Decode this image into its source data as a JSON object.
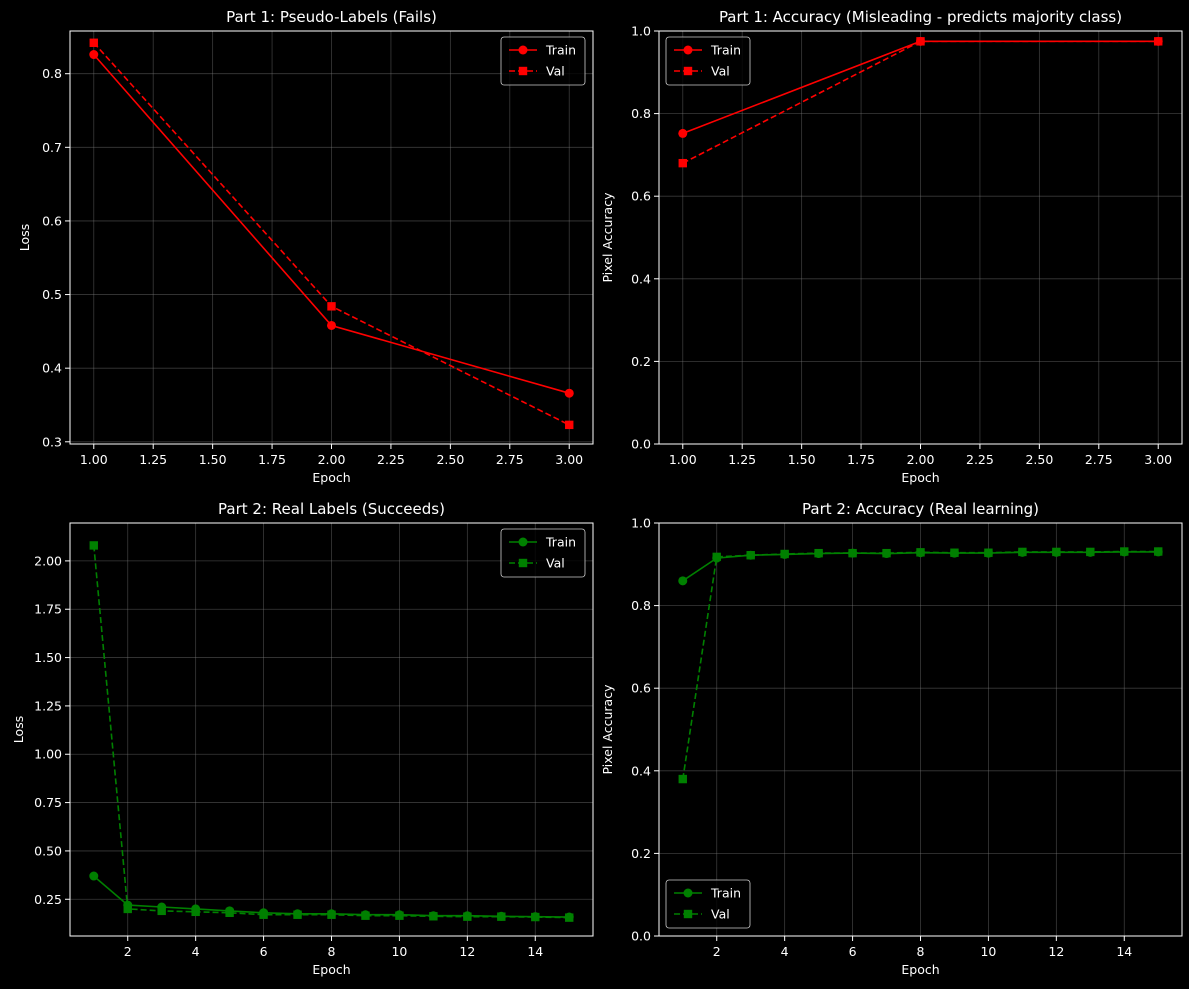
{
  "colors": {
    "background": "#000000",
    "text": "#ffffff",
    "grid": "#808080",
    "part1": "#ff0000",
    "part2": "#008000"
  },
  "chart_data": [
    {
      "type": "line",
      "title": "Part 1: Pseudo-Labels (Fails)",
      "xlabel": "Epoch",
      "ylabel": "Loss",
      "xlim": [
        0.9,
        3.1
      ],
      "ylim": [
        0.297,
        0.858
      ],
      "xticks": [
        1.0,
        1.25,
        1.5,
        1.75,
        2.0,
        2.25,
        2.5,
        2.75,
        3.0
      ],
      "xtick_labels": [
        "1.00",
        "1.25",
        "1.50",
        "1.75",
        "2.00",
        "2.25",
        "2.50",
        "2.75",
        "3.00"
      ],
      "yticks": [
        0.3,
        0.4,
        0.5,
        0.6,
        0.7,
        0.8
      ],
      "ytick_labels": [
        "0.3",
        "0.4",
        "0.5",
        "0.6",
        "0.7",
        "0.8"
      ],
      "grid": true,
      "legend": "upper-right",
      "color": "#ff0000",
      "x": [
        1,
        2,
        3
      ],
      "series": [
        {
          "name": "Train",
          "style": "solid",
          "marker": "circle",
          "values": [
            0.826,
            0.458,
            0.366
          ]
        },
        {
          "name": "Val",
          "style": "dashed",
          "marker": "square",
          "values": [
            0.842,
            0.484,
            0.323
          ]
        }
      ]
    },
    {
      "type": "line",
      "title": "Part 1: Accuracy (Misleading - predicts majority class)",
      "xlabel": "Epoch",
      "ylabel": "Pixel Accuracy",
      "xlim": [
        0.9,
        3.1
      ],
      "ylim": [
        0,
        1
      ],
      "xticks": [
        1.0,
        1.25,
        1.5,
        1.75,
        2.0,
        2.25,
        2.5,
        2.75,
        3.0
      ],
      "xtick_labels": [
        "1.00",
        "1.25",
        "1.50",
        "1.75",
        "2.00",
        "2.25",
        "2.50",
        "2.75",
        "3.00"
      ],
      "yticks": [
        0,
        0.2,
        0.4,
        0.6,
        0.8,
        1.0
      ],
      "ytick_labels": [
        "0.0",
        "0.2",
        "0.4",
        "0.6",
        "0.8",
        "1.0"
      ],
      "grid": true,
      "legend": "upper-left",
      "color": "#ff0000",
      "x": [
        1,
        2,
        3
      ],
      "series": [
        {
          "name": "Train",
          "style": "solid",
          "marker": "circle",
          "values": [
            0.752,
            0.975,
            0.975
          ]
        },
        {
          "name": "Val",
          "style": "dashed",
          "marker": "square",
          "values": [
            0.68,
            0.975,
            0.975
          ]
        }
      ]
    },
    {
      "type": "line",
      "title": "Part 2: Real Labels (Succeeds)",
      "xlabel": "Epoch",
      "ylabel": "Loss",
      "xlim": [
        0.3,
        15.7
      ],
      "ylim": [
        0.06,
        2.196
      ],
      "xticks": [
        2,
        4,
        6,
        8,
        10,
        12,
        14
      ],
      "xtick_labels": [
        "2",
        "4",
        "6",
        "8",
        "10",
        "12",
        "14"
      ],
      "yticks": [
        0.25,
        0.5,
        0.75,
        1.0,
        1.25,
        1.5,
        1.75,
        2.0
      ],
      "ytick_labels": [
        "0.25",
        "0.50",
        "0.75",
        "1.00",
        "1.25",
        "1.50",
        "1.75",
        "2.00"
      ],
      "grid": true,
      "legend": "upper-right",
      "color": "#008000",
      "x": [
        1,
        2,
        3,
        4,
        5,
        6,
        7,
        8,
        9,
        10,
        11,
        12,
        13,
        14,
        15
      ],
      "series": [
        {
          "name": "Train",
          "style": "solid",
          "marker": "circle",
          "values": [
            0.37,
            0.22,
            0.21,
            0.2,
            0.19,
            0.18,
            0.175,
            0.175,
            0.17,
            0.17,
            0.165,
            0.165,
            0.162,
            0.16,
            0.158
          ]
        },
        {
          "name": "Val",
          "style": "dashed",
          "marker": "square",
          "values": [
            2.08,
            0.2,
            0.19,
            0.185,
            0.18,
            0.17,
            0.17,
            0.17,
            0.165,
            0.165,
            0.162,
            0.16,
            0.16,
            0.158,
            0.155
          ]
        }
      ]
    },
    {
      "type": "line",
      "title": "Part 2: Accuracy (Real learning)",
      "xlabel": "Epoch",
      "ylabel": "Pixel Accuracy",
      "xlim": [
        0.3,
        15.7
      ],
      "ylim": [
        0,
        1
      ],
      "xticks": [
        2,
        4,
        6,
        8,
        10,
        12,
        14
      ],
      "xtick_labels": [
        "2",
        "4",
        "6",
        "8",
        "10",
        "12",
        "14"
      ],
      "yticks": [
        0,
        0.2,
        0.4,
        0.6,
        0.8,
        1.0
      ],
      "ytick_labels": [
        "0.0",
        "0.2",
        "0.4",
        "0.6",
        "0.8",
        "1.0"
      ],
      "grid": true,
      "legend": "lower-left",
      "color": "#008000",
      "x": [
        1,
        2,
        3,
        4,
        5,
        6,
        7,
        8,
        9,
        10,
        11,
        12,
        13,
        14,
        15
      ],
      "series": [
        {
          "name": "Train",
          "style": "solid",
          "marker": "circle",
          "values": [
            0.86,
            0.915,
            0.922,
            0.924,
            0.926,
            0.927,
            0.926,
            0.928,
            0.927,
            0.927,
            0.929,
            0.929,
            0.929,
            0.93,
            0.93
          ]
        },
        {
          "name": "Val",
          "style": "dashed",
          "marker": "square",
          "values": [
            0.38,
            0.918,
            0.922,
            0.925,
            0.927,
            0.927,
            0.927,
            0.929,
            0.928,
            0.928,
            0.93,
            0.93,
            0.93,
            0.931,
            0.931
          ]
        }
      ]
    }
  ]
}
